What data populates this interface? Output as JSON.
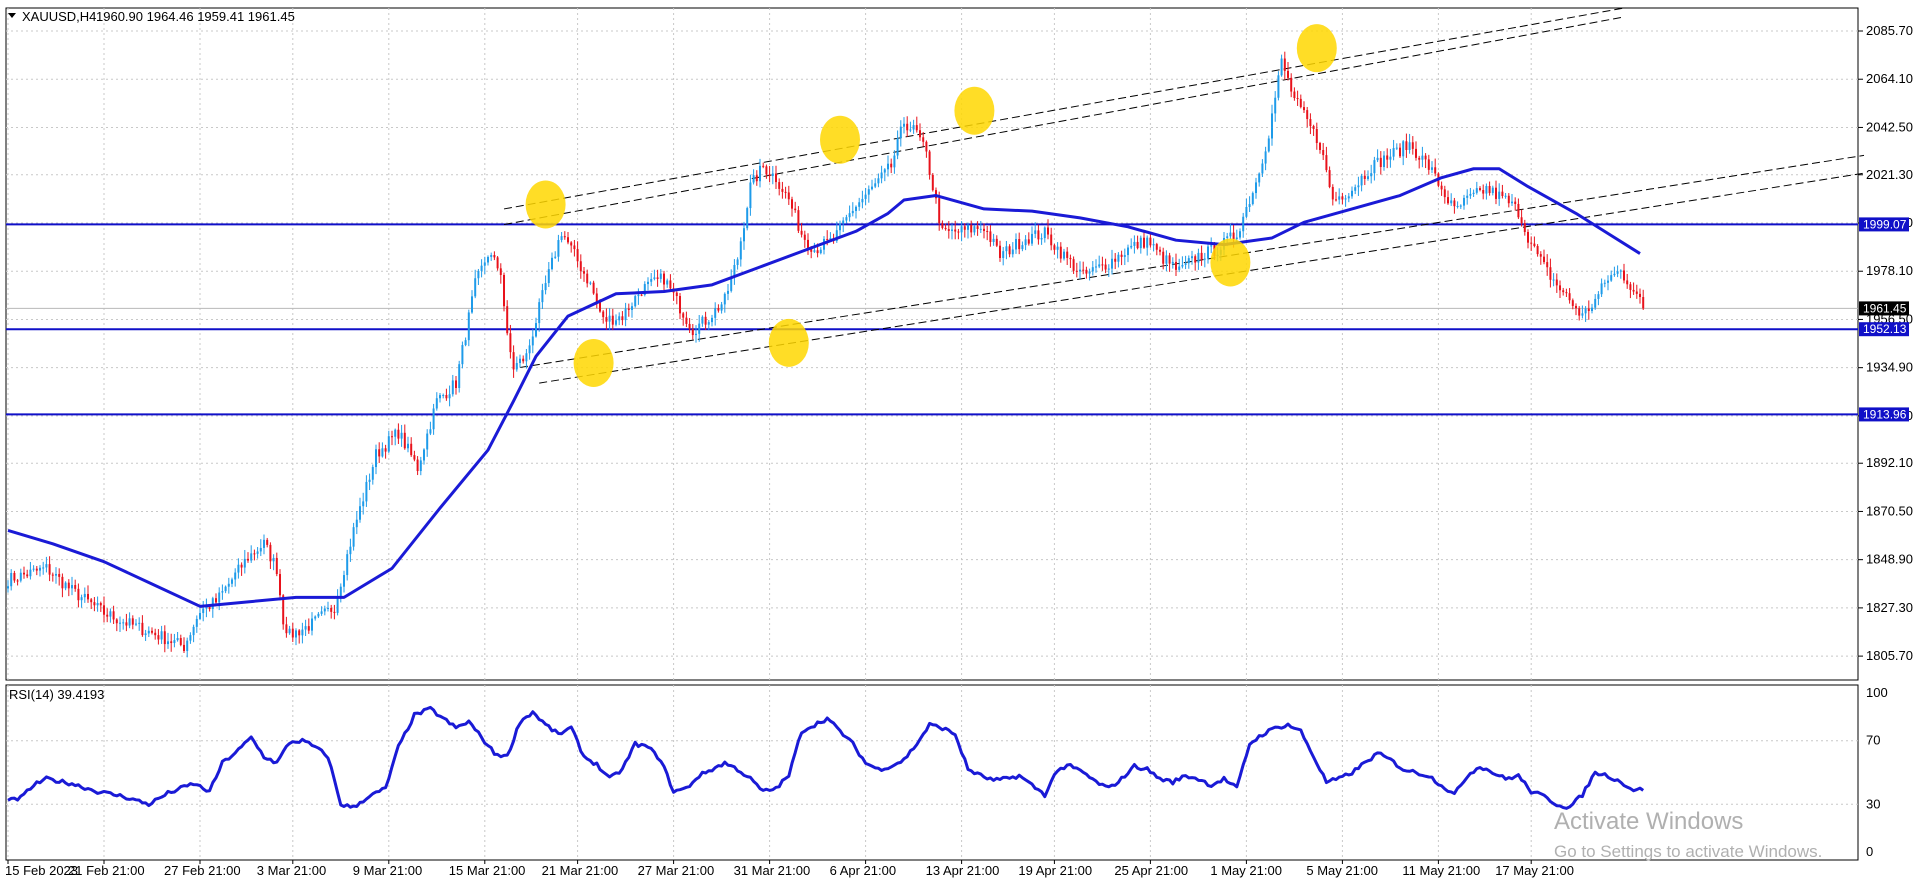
{
  "header": {
    "symbol": "XAUUSD,H4",
    "ohlc": "1960.90 1964.46 1959.41 1961.45"
  },
  "chart_data": [
    {
      "type": "candlestick",
      "symbol": "XAUUSD",
      "timeframe": "H4",
      "ylim": [
        1795,
        2096
      ],
      "y_ticks": [
        "2085.70",
        "2064.10",
        "2042.50",
        "2021.30",
        "1999.70",
        "1978.10",
        "1956.50",
        "1934.90",
        "1913.30",
        "1892.10",
        "1870.50",
        "1848.90",
        "1827.30",
        "1805.70"
      ],
      "x_ticks": [
        "15 Feb 2023",
        "21 Feb 21:00",
        "27 Feb 21:00",
        "3 Mar 21:00",
        "9 Mar 21:00",
        "15 Mar 21:00",
        "21 Mar 21:00",
        "27 Mar 21:00",
        "31 Mar 21:00",
        "6 Apr 21:00",
        "13 Apr 21:00",
        "19 Apr 21:00",
        "25 Apr 21:00",
        "1 May 21:00",
        "5 May 21:00",
        "11 May 21:00",
        "17 May 21:00"
      ],
      "price_path": [
        [
          0,
          1840
        ],
        [
          12,
          1845
        ],
        [
          20,
          1835
        ],
        [
          30,
          1825
        ],
        [
          38,
          1820
        ],
        [
          47,
          1815
        ],
        [
          55,
          1810
        ],
        [
          60,
          1826
        ],
        [
          65,
          1830
        ],
        [
          75,
          1850
        ],
        [
          80,
          1856
        ],
        [
          84,
          1845
        ],
        [
          86,
          1822
        ],
        [
          88,
          1815
        ],
        [
          95,
          1820
        ],
        [
          102,
          1828
        ],
        [
          108,
          1862
        ],
        [
          115,
          1896
        ],
        [
          122,
          1906
        ],
        [
          128,
          1890
        ],
        [
          134,
          1920
        ],
        [
          140,
          1928
        ],
        [
          146,
          1972
        ],
        [
          150,
          1986
        ],
        [
          154,
          1978
        ],
        [
          156,
          1948
        ],
        [
          158,
          1935
        ],
        [
          162,
          1940
        ],
        [
          168,
          1972
        ],
        [
          173,
          1996
        ],
        [
          176,
          1988
        ],
        [
          182,
          1972
        ],
        [
          186,
          1956
        ],
        [
          192,
          1958
        ],
        [
          198,
          1970
        ],
        [
          205,
          1975
        ],
        [
          210,
          1962
        ],
        [
          214,
          1952
        ],
        [
          218,
          1956
        ],
        [
          224,
          1965
        ],
        [
          228,
          1984
        ],
        [
          232,
          2016
        ],
        [
          236,
          2025
        ],
        [
          240,
          2020
        ],
        [
          244,
          2010
        ],
        [
          248,
          1995
        ],
        [
          252,
          1988
        ],
        [
          258,
          1992
        ],
        [
          264,
          2006
        ],
        [
          270,
          2015
        ],
        [
          276,
          2025
        ],
        [
          280,
          2045
        ],
        [
          284,
          2040
        ],
        [
          287,
          2030
        ],
        [
          292,
          1995
        ],
        [
          298,
          1996
        ],
        [
          305,
          1998
        ],
        [
          310,
          1985
        ],
        [
          318,
          1993
        ],
        [
          324,
          1995
        ],
        [
          330,
          1985
        ],
        [
          336,
          1976
        ],
        [
          344,
          1982
        ],
        [
          350,
          1988
        ],
        [
          356,
          1992
        ],
        [
          360,
          1985
        ],
        [
          366,
          1978
        ],
        [
          372,
          1985
        ],
        [
          378,
          1988
        ],
        [
          384,
          1995
        ],
        [
          390,
          2018
        ],
        [
          394,
          2040
        ],
        [
          398,
          2072
        ],
        [
          402,
          2055
        ],
        [
          406,
          2045
        ],
        [
          410,
          2035
        ],
        [
          414,
          2010
        ],
        [
          420,
          2015
        ],
        [
          426,
          2025
        ],
        [
          432,
          2030
        ],
        [
          438,
          2035
        ],
        [
          444,
          2025
        ],
        [
          448,
          2015
        ],
        [
          452,
          2005
        ],
        [
          456,
          2010
        ],
        [
          462,
          2015
        ],
        [
          468,
          2010
        ],
        [
          472,
          2005
        ],
        [
          476,
          1990
        ],
        [
          480,
          1980
        ],
        [
          484,
          1972
        ],
        [
          488,
          1965
        ],
        [
          492,
          1958
        ],
        [
          496,
          1965
        ],
        [
          500,
          1975
        ],
        [
          504,
          1978
        ],
        [
          508,
          1970
        ],
        [
          511,
          1961.45
        ]
      ],
      "moving_average": [
        [
          0,
          1862
        ],
        [
          14,
          1856
        ],
        [
          30,
          1848
        ],
        [
          45,
          1838
        ],
        [
          60,
          1828
        ],
        [
          75,
          1830
        ],
        [
          90,
          1832
        ],
        [
          105,
          1832
        ],
        [
          120,
          1845
        ],
        [
          135,
          1872
        ],
        [
          150,
          1898
        ],
        [
          158,
          1920
        ],
        [
          165,
          1940
        ],
        [
          175,
          1958
        ],
        [
          190,
          1968
        ],
        [
          205,
          1969
        ],
        [
          220,
          1972
        ],
        [
          235,
          1980
        ],
        [
          250,
          1988
        ],
        [
          265,
          1996
        ],
        [
          275,
          2004
        ],
        [
          280,
          2010
        ],
        [
          290,
          2012
        ],
        [
          305,
          2006
        ],
        [
          320,
          2005
        ],
        [
          335,
          2002
        ],
        [
          350,
          1998
        ],
        [
          365,
          1992
        ],
        [
          380,
          1990
        ],
        [
          395,
          1993
        ],
        [
          405,
          2000
        ],
        [
          420,
          2006
        ],
        [
          435,
          2012
        ],
        [
          448,
          2020
        ],
        [
          458,
          2024
        ],
        [
          466,
          2024
        ],
        [
          475,
          2016
        ],
        [
          490,
          2004
        ],
        [
          500,
          1995
        ],
        [
          510,
          1986
        ]
      ],
      "horizontal_levels": [
        {
          "value": 1999.07,
          "label": "1999.07"
        },
        {
          "value": 1952.13,
          "label": "1952.13"
        },
        {
          "value": 1913.96,
          "label": "1913.96"
        }
      ],
      "current_price": {
        "value": 1961.45,
        "label": "1961.45"
      },
      "channel_lines": [
        [
          [
            155,
            2006
          ],
          [
            505,
            2096
          ]
        ],
        [
          [
            155,
            1999
          ],
          [
            505,
            2092
          ]
        ],
        [
          [
            160,
            1935
          ],
          [
            580,
            2030
          ]
        ],
        [
          [
            166,
            1928
          ],
          [
            580,
            2022
          ]
        ]
      ],
      "highlight_markers": [
        [
          168,
          2008
        ],
        [
          183,
          1937
        ],
        [
          244,
          1946
        ],
        [
          260,
          2037
        ],
        [
          302,
          2050
        ],
        [
          382,
          1982
        ],
        [
          409,
          2078
        ]
      ],
      "colors": {
        "candle_up": "#1e9be9",
        "candle_down": "#e8121b",
        "ma": "#1a1ad6",
        "level": "#1010c8",
        "marker": "#ffd700",
        "grid": "#c8c8c8"
      }
    },
    {
      "type": "line",
      "title": "RSI(14) 39.4193",
      "ylim": [
        0,
        100
      ],
      "y_ticks": [
        "100",
        "70",
        "30",
        "0"
      ],
      "values": [
        [
          0,
          32
        ],
        [
          4,
          34
        ],
        [
          8,
          42
        ],
        [
          12,
          46
        ],
        [
          20,
          43
        ],
        [
          28,
          38
        ],
        [
          36,
          35
        ],
        [
          44,
          30
        ],
        [
          50,
          37
        ],
        [
          58,
          43
        ],
        [
          63,
          38
        ],
        [
          67,
          56
        ],
        [
          72,
          64
        ],
        [
          76,
          72
        ],
        [
          80,
          60
        ],
        [
          84,
          56
        ],
        [
          88,
          69
        ],
        [
          92,
          70
        ],
        [
          96,
          66
        ],
        [
          100,
          60
        ],
        [
          104,
          30
        ],
        [
          108,
          28
        ],
        [
          112,
          34
        ],
        [
          118,
          40
        ],
        [
          122,
          66
        ],
        [
          127,
          86
        ],
        [
          132,
          90
        ],
        [
          136,
          84
        ],
        [
          140,
          78
        ],
        [
          144,
          82
        ],
        [
          148,
          72
        ],
        [
          152,
          62
        ],
        [
          156,
          60
        ],
        [
          160,
          82
        ],
        [
          164,
          88
        ],
        [
          168,
          80
        ],
        [
          172,
          74
        ],
        [
          176,
          78
        ],
        [
          180,
          60
        ],
        [
          184,
          55
        ],
        [
          188,
          46
        ],
        [
          192,
          52
        ],
        [
          196,
          68
        ],
        [
          200,
          66
        ],
        [
          204,
          58
        ],
        [
          208,
          38
        ],
        [
          212,
          40
        ],
        [
          216,
          48
        ],
        [
          220,
          52
        ],
        [
          224,
          56
        ],
        [
          228,
          52
        ],
        [
          232,
          46
        ],
        [
          236,
          38
        ],
        [
          240,
          40
        ],
        [
          244,
          48
        ],
        [
          248,
          76
        ],
        [
          252,
          80
        ],
        [
          256,
          84
        ],
        [
          260,
          76
        ],
        [
          264,
          68
        ],
        [
          268,
          56
        ],
        [
          272,
          52
        ],
        [
          276,
          54
        ],
        [
          280,
          58
        ],
        [
          284,
          68
        ],
        [
          288,
          80
        ],
        [
          292,
          78
        ],
        [
          296,
          74
        ],
        [
          300,
          52
        ],
        [
          304,
          48
        ],
        [
          308,
          45
        ],
        [
          312,
          46
        ],
        [
          316,
          48
        ],
        [
          320,
          42
        ],
        [
          324,
          36
        ],
        [
          328,
          52
        ],
        [
          332,
          54
        ],
        [
          336,
          50
        ],
        [
          340,
          44
        ],
        [
          344,
          40
        ],
        [
          348,
          46
        ],
        [
          352,
          54
        ],
        [
          356,
          52
        ],
        [
          360,
          46
        ],
        [
          364,
          44
        ],
        [
          368,
          48
        ],
        [
          372,
          46
        ],
        [
          376,
          42
        ],
        [
          380,
          46
        ],
        [
          384,
          40
        ],
        [
          388,
          68
        ],
        [
          392,
          74
        ],
        [
          396,
          78
        ],
        [
          400,
          80
        ],
        [
          404,
          76
        ],
        [
          408,
          60
        ],
        [
          412,
          44
        ],
        [
          416,
          46
        ],
        [
          420,
          50
        ],
        [
          424,
          56
        ],
        [
          428,
          62
        ],
        [
          432,
          58
        ],
        [
          436,
          52
        ],
        [
          440,
          50
        ],
        [
          444,
          48
        ],
        [
          448,
          42
        ],
        [
          452,
          36
        ],
        [
          456,
          48
        ],
        [
          460,
          54
        ],
        [
          464,
          50
        ],
        [
          468,
          46
        ],
        [
          472,
          48
        ],
        [
          476,
          38
        ],
        [
          480,
          35
        ],
        [
          484,
          30
        ],
        [
          488,
          28
        ],
        [
          492,
          36
        ],
        [
          496,
          50
        ],
        [
          500,
          48
        ],
        [
          504,
          44
        ],
        [
          508,
          39
        ],
        [
          511,
          39.4
        ]
      ]
    }
  ],
  "watermark": {
    "line1": "Activate Windows",
    "line2": "Go to Settings to activate Windows."
  }
}
